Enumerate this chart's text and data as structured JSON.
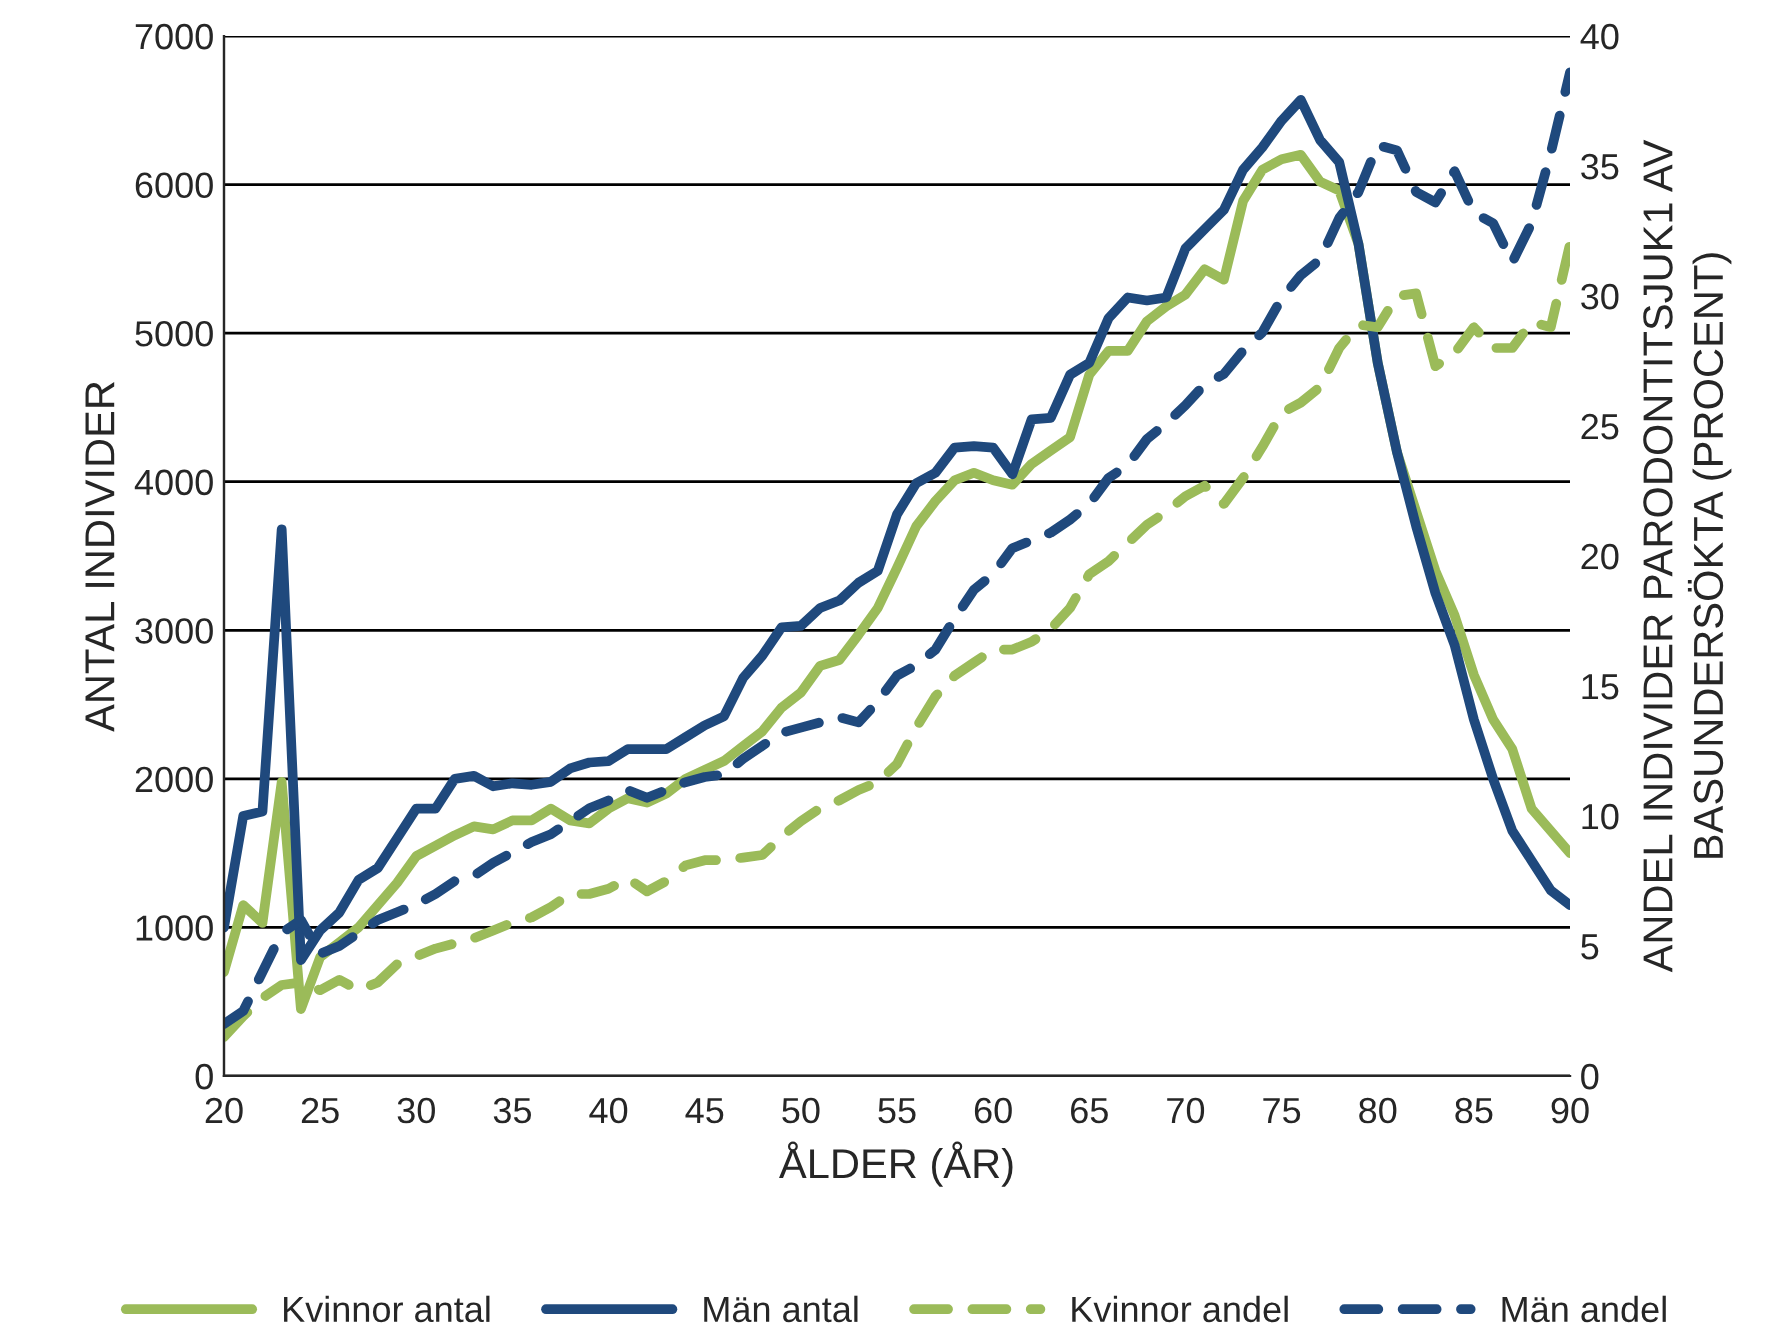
{
  "chart_data": {
    "type": "line",
    "xlabel": "ÅLDER (ÅR)",
    "ylabel": "ANTAL INDIVIDER",
    "y2label": "ANDEL INDIVIDER PARODONTITSJUK1 AV\nBASUNDERSÖKTA (PROCENT)",
    "x": [
      20,
      21,
      22,
      23,
      24,
      25,
      26,
      27,
      28,
      29,
      30,
      31,
      32,
      33,
      34,
      35,
      36,
      37,
      38,
      39,
      40,
      41,
      42,
      43,
      44,
      45,
      46,
      47,
      48,
      49,
      50,
      51,
      52,
      53,
      54,
      55,
      56,
      57,
      58,
      59,
      60,
      61,
      62,
      63,
      64,
      65,
      66,
      67,
      68,
      69,
      70,
      71,
      72,
      73,
      74,
      75,
      76,
      77,
      78,
      79,
      80,
      81,
      82,
      83,
      84,
      85,
      86,
      87,
      88,
      89,
      90
    ],
    "xlim": [
      20,
      90
    ],
    "xticks": [
      20,
      25,
      30,
      35,
      40,
      45,
      50,
      55,
      60,
      65,
      70,
      75,
      80,
      85,
      90
    ],
    "ylim": [
      0,
      7000
    ],
    "yticks": [
      0,
      1000,
      2000,
      3000,
      4000,
      5000,
      6000,
      7000
    ],
    "y2lim": [
      0,
      40
    ],
    "y2ticks": [
      0,
      5,
      10,
      15,
      20,
      25,
      30,
      35,
      40
    ],
    "grid": "y",
    "legend": "bottom",
    "series": [
      {
        "name": "Kvinnor antal",
        "color": "#9bbb59",
        "line_style": "solid",
        "values": [
          700,
          1150,
          1030,
          1980,
          450,
          800,
          900,
          1000,
          1150,
          1300,
          1480,
          1550,
          1620,
          1680,
          1660,
          1720,
          1720,
          1800,
          1720,
          1700,
          1800,
          1870,
          1840,
          1900,
          2000,
          2060,
          2120,
          2220,
          2320,
          2480,
          2580,
          2760,
          2800,
          2970,
          3150,
          3420,
          3700,
          3870,
          4010,
          4060,
          4010,
          3980,
          4120,
          4210,
          4300,
          4720,
          4880,
          4880,
          5080,
          5180,
          5260,
          5430,
          5360,
          5890,
          6100,
          6170,
          6200,
          6020,
          5960,
          5600,
          4800,
          4200,
          3800,
          3400,
          3100,
          2700,
          2400,
          2200,
          1800,
          1650,
          1500
        ]
      },
      {
        "name": "Män antal",
        "color": "#1f497d",
        "line_style": "solid",
        "values": [
          1000,
          1750,
          1780,
          3680,
          780,
          980,
          1100,
          1320,
          1400,
          1600,
          1800,
          1800,
          2000,
          2020,
          1950,
          1970,
          1960,
          1980,
          2070,
          2110,
          2120,
          2200,
          2200,
          2200,
          2280,
          2360,
          2420,
          2680,
          2830,
          3020,
          3030,
          3150,
          3200,
          3320,
          3400,
          3780,
          3990,
          4060,
          4230,
          4240,
          4230,
          4050,
          4420,
          4430,
          4720,
          4800,
          5100,
          5240,
          5220,
          5240,
          5570,
          5700,
          5830,
          6100,
          6250,
          6430,
          6570,
          6300,
          6150,
          5600,
          4800,
          4200,
          3700,
          3250,
          2900,
          2400,
          2000,
          1650,
          1450,
          1250,
          1150
        ]
      },
      {
        "name": "Kvinnor andel",
        "color": "#9bbb59",
        "line_style": "dashed",
        "axis": "y2",
        "values": [
          1.5,
          2.3,
          3.0,
          3.5,
          3.6,
          3.3,
          3.7,
          3.3,
          3.6,
          4.3,
          4.6,
          4.9,
          5.1,
          5.3,
          5.6,
          5.9,
          6.1,
          6.5,
          7.0,
          7.0,
          7.2,
          7.6,
          7.1,
          7.5,
          8.1,
          8.3,
          8.3,
          8.4,
          8.5,
          9.2,
          9.8,
          10.3,
          10.6,
          11.0,
          11.3,
          12.0,
          13.4,
          14.6,
          15.4,
          15.9,
          16.4,
          16.4,
          16.7,
          17.2,
          18.0,
          19.3,
          19.8,
          20.5,
          21.2,
          21.7,
          22.3,
          22.7,
          22.0,
          23.0,
          24.2,
          25.5,
          25.9,
          26.5,
          28.0,
          28.9,
          28.8,
          30.0,
          30.1,
          27.3,
          27.8,
          28.8,
          28.0,
          28.0,
          29.0,
          28.8,
          32.0
        ]
      },
      {
        "name": "Män andel",
        "color": "#1f497d",
        "line_style": "dashed",
        "axis": "y2",
        "values": [
          2.0,
          2.5,
          4.0,
          5.5,
          6.0,
          4.7,
          5.0,
          5.5,
          6.0,
          6.3,
          6.6,
          7.0,
          7.5,
          7.7,
          8.2,
          8.6,
          9.0,
          9.3,
          9.8,
          10.3,
          10.6,
          11.0,
          10.7,
          11.0,
          11.3,
          11.5,
          11.6,
          12.2,
          12.7,
          13.2,
          13.4,
          13.6,
          13.8,
          13.6,
          14.4,
          15.4,
          15.8,
          16.4,
          17.6,
          18.7,
          19.3,
          20.3,
          20.6,
          20.9,
          21.4,
          22.0,
          23.0,
          23.5,
          24.5,
          25.1,
          25.8,
          26.6,
          27.0,
          27.9,
          28.6,
          29.9,
          30.8,
          31.4,
          33.0,
          34.0,
          35.8,
          35.6,
          34.0,
          33.6,
          34.8,
          33.2,
          32.8,
          31.3,
          32.8,
          35.5,
          38.6
        ]
      }
    ]
  }
}
